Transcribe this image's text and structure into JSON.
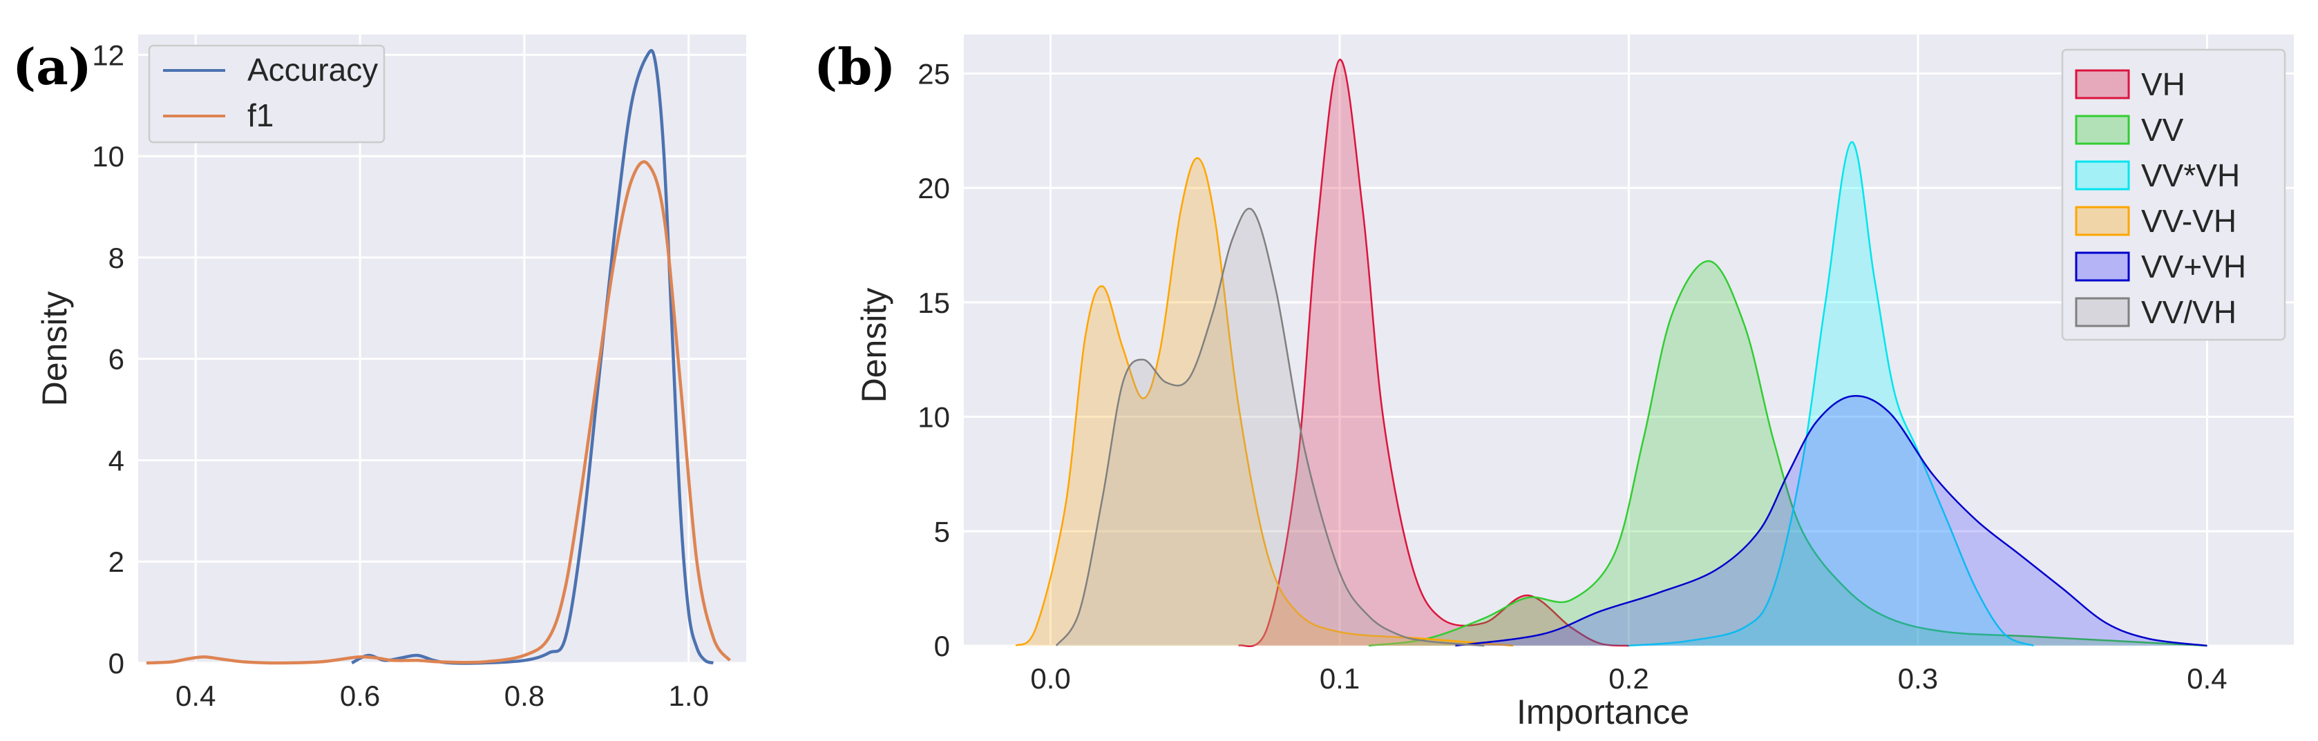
{
  "panel_a": {
    "letter": "(a)",
    "chart_data": {
      "type": "line",
      "title": "",
      "xlabel": "",
      "ylabel": "Density",
      "xlim": [
        0.33,
        1.07
      ],
      "ylim": [
        0,
        12.4
      ],
      "xticks": [
        0.4,
        0.6,
        0.8,
        1.0
      ],
      "xtick_labels": [
        "0.4",
        "0.6",
        "0.8",
        "1.0"
      ],
      "yticks": [
        0,
        2,
        4,
        6,
        8,
        10,
        12
      ],
      "ytick_labels": [
        "0",
        "2",
        "4",
        "6",
        "8",
        "10",
        "12"
      ],
      "grid": true,
      "legend": "top-left",
      "series": [
        {
          "name": "Accuracy",
          "color": "#4c72b0",
          "x": [
            0.59,
            0.61,
            0.63,
            0.65,
            0.67,
            0.69,
            0.71,
            0.75,
            0.8,
            0.83,
            0.85,
            0.87,
            0.89,
            0.91,
            0.93,
            0.95,
            0.96,
            0.97,
            0.98,
            0.99,
            1.0,
            1.01,
            1.02,
            1.03
          ],
          "y": [
            0.0,
            0.15,
            0.05,
            0.1,
            0.15,
            0.05,
            0.0,
            0.0,
            0.05,
            0.2,
            0.5,
            2.5,
            5.5,
            8.5,
            11.0,
            12.0,
            11.8,
            10.0,
            6.5,
            3.0,
            1.0,
            0.3,
            0.05,
            0.0
          ]
        },
        {
          "name": "f1",
          "color": "#dd8452",
          "x": [
            0.34,
            0.37,
            0.39,
            0.41,
            0.43,
            0.46,
            0.5,
            0.55,
            0.58,
            0.6,
            0.62,
            0.64,
            0.67,
            0.7,
            0.75,
            0.8,
            0.83,
            0.85,
            0.87,
            0.89,
            0.91,
            0.93,
            0.95,
            0.97,
            0.99,
            1.01,
            1.03,
            1.05
          ],
          "y": [
            0.0,
            0.02,
            0.08,
            0.12,
            0.08,
            0.02,
            0.0,
            0.02,
            0.08,
            0.12,
            0.1,
            0.05,
            0.05,
            0.02,
            0.02,
            0.15,
            0.5,
            1.5,
            3.5,
            5.8,
            8.0,
            9.5,
            9.85,
            8.8,
            5.5,
            2.0,
            0.5,
            0.05
          ]
        }
      ]
    }
  },
  "panel_b": {
    "letter": "(b)",
    "chart_data": {
      "type": "area",
      "title": "",
      "xlabel": "Importance",
      "ylabel": "Density",
      "xlim": [
        -0.03,
        0.43
      ],
      "ylim": [
        0,
        26.7
      ],
      "xticks": [
        0.0,
        0.1,
        0.2,
        0.3,
        0.4
      ],
      "xtick_labels": [
        "0.0",
        "0.1",
        "0.2",
        "0.3",
        "0.4"
      ],
      "yticks": [
        0,
        5,
        10,
        15,
        20,
        25
      ],
      "ytick_labels": [
        "0",
        "5",
        "10",
        "15",
        "20",
        "25"
      ],
      "grid": true,
      "legend": "top-right",
      "series": [
        {
          "name": "VH",
          "line": "#dc143c",
          "fill": "#dc143c",
          "x": [
            0.065,
            0.075,
            0.085,
            0.092,
            0.1,
            0.108,
            0.115,
            0.125,
            0.135,
            0.15,
            0.165,
            0.18,
            0.19,
            0.2
          ],
          "y": [
            0.0,
            0.8,
            7.5,
            18.0,
            25.6,
            19.0,
            10.0,
            3.5,
            1.2,
            1.0,
            2.2,
            0.8,
            0.1,
            0.0
          ]
        },
        {
          "name": "VV",
          "line": "#32cd32",
          "fill": "#32cd32",
          "x": [
            0.11,
            0.13,
            0.15,
            0.165,
            0.18,
            0.195,
            0.205,
            0.215,
            0.228,
            0.24,
            0.25,
            0.26,
            0.275,
            0.29,
            0.31,
            0.34,
            0.37,
            0.4
          ],
          "y": [
            0.0,
            0.3,
            1.2,
            2.1,
            2.0,
            4.0,
            9.0,
            14.5,
            16.8,
            14.0,
            9.0,
            5.0,
            2.5,
            1.2,
            0.6,
            0.4,
            0.2,
            0.0
          ]
        },
        {
          "name": "VV*VH",
          "line": "#00e5ee",
          "fill": "#00ffff",
          "x": [
            0.2,
            0.22,
            0.24,
            0.25,
            0.26,
            0.268,
            0.277,
            0.285,
            0.292,
            0.3,
            0.31,
            0.32,
            0.33,
            0.34
          ],
          "y": [
            0.0,
            0.2,
            0.8,
            2.5,
            8.0,
            15.0,
            22.0,
            16.0,
            11.0,
            8.5,
            5.5,
            2.5,
            0.5,
            0.0
          ]
        },
        {
          "name": "VV-VH",
          "line": "#ffa500",
          "fill": "#ffa500",
          "x": [
            -0.012,
            -0.005,
            0.005,
            0.012,
            0.018,
            0.025,
            0.032,
            0.038,
            0.045,
            0.051,
            0.057,
            0.065,
            0.075,
            0.085,
            0.1,
            0.13,
            0.16
          ],
          "y": [
            0.0,
            0.8,
            6.0,
            13.5,
            15.7,
            13.0,
            10.8,
            13.0,
            19.0,
            21.3,
            18.5,
            10.5,
            4.0,
            1.5,
            0.6,
            0.3,
            0.0
          ]
        },
        {
          "name": "VV+VH",
          "line": "#0000cd",
          "fill": "#3838ff",
          "x": [
            0.14,
            0.17,
            0.19,
            0.21,
            0.23,
            0.245,
            0.255,
            0.265,
            0.277,
            0.29,
            0.305,
            0.32,
            0.335,
            0.35,
            0.365,
            0.38,
            0.4
          ],
          "y": [
            0.0,
            0.5,
            1.5,
            2.3,
            3.3,
            5.0,
            7.5,
            9.8,
            10.9,
            10.2,
            7.5,
            5.5,
            4.0,
            2.5,
            1.0,
            0.3,
            0.0
          ]
        },
        {
          "name": "VV/VH",
          "line": "#808080",
          "fill": "#a9a9a9",
          "x": [
            0.002,
            0.01,
            0.018,
            0.025,
            0.032,
            0.04,
            0.048,
            0.056,
            0.063,
            0.07,
            0.078,
            0.088,
            0.1,
            0.11,
            0.12,
            0.13,
            0.15
          ],
          "y": [
            0.0,
            1.5,
            6.5,
            11.5,
            12.5,
            11.5,
            11.7,
            14.5,
            17.8,
            19.0,
            15.5,
            8.5,
            3.2,
            1.3,
            0.5,
            0.2,
            0.0
          ]
        }
      ]
    }
  }
}
